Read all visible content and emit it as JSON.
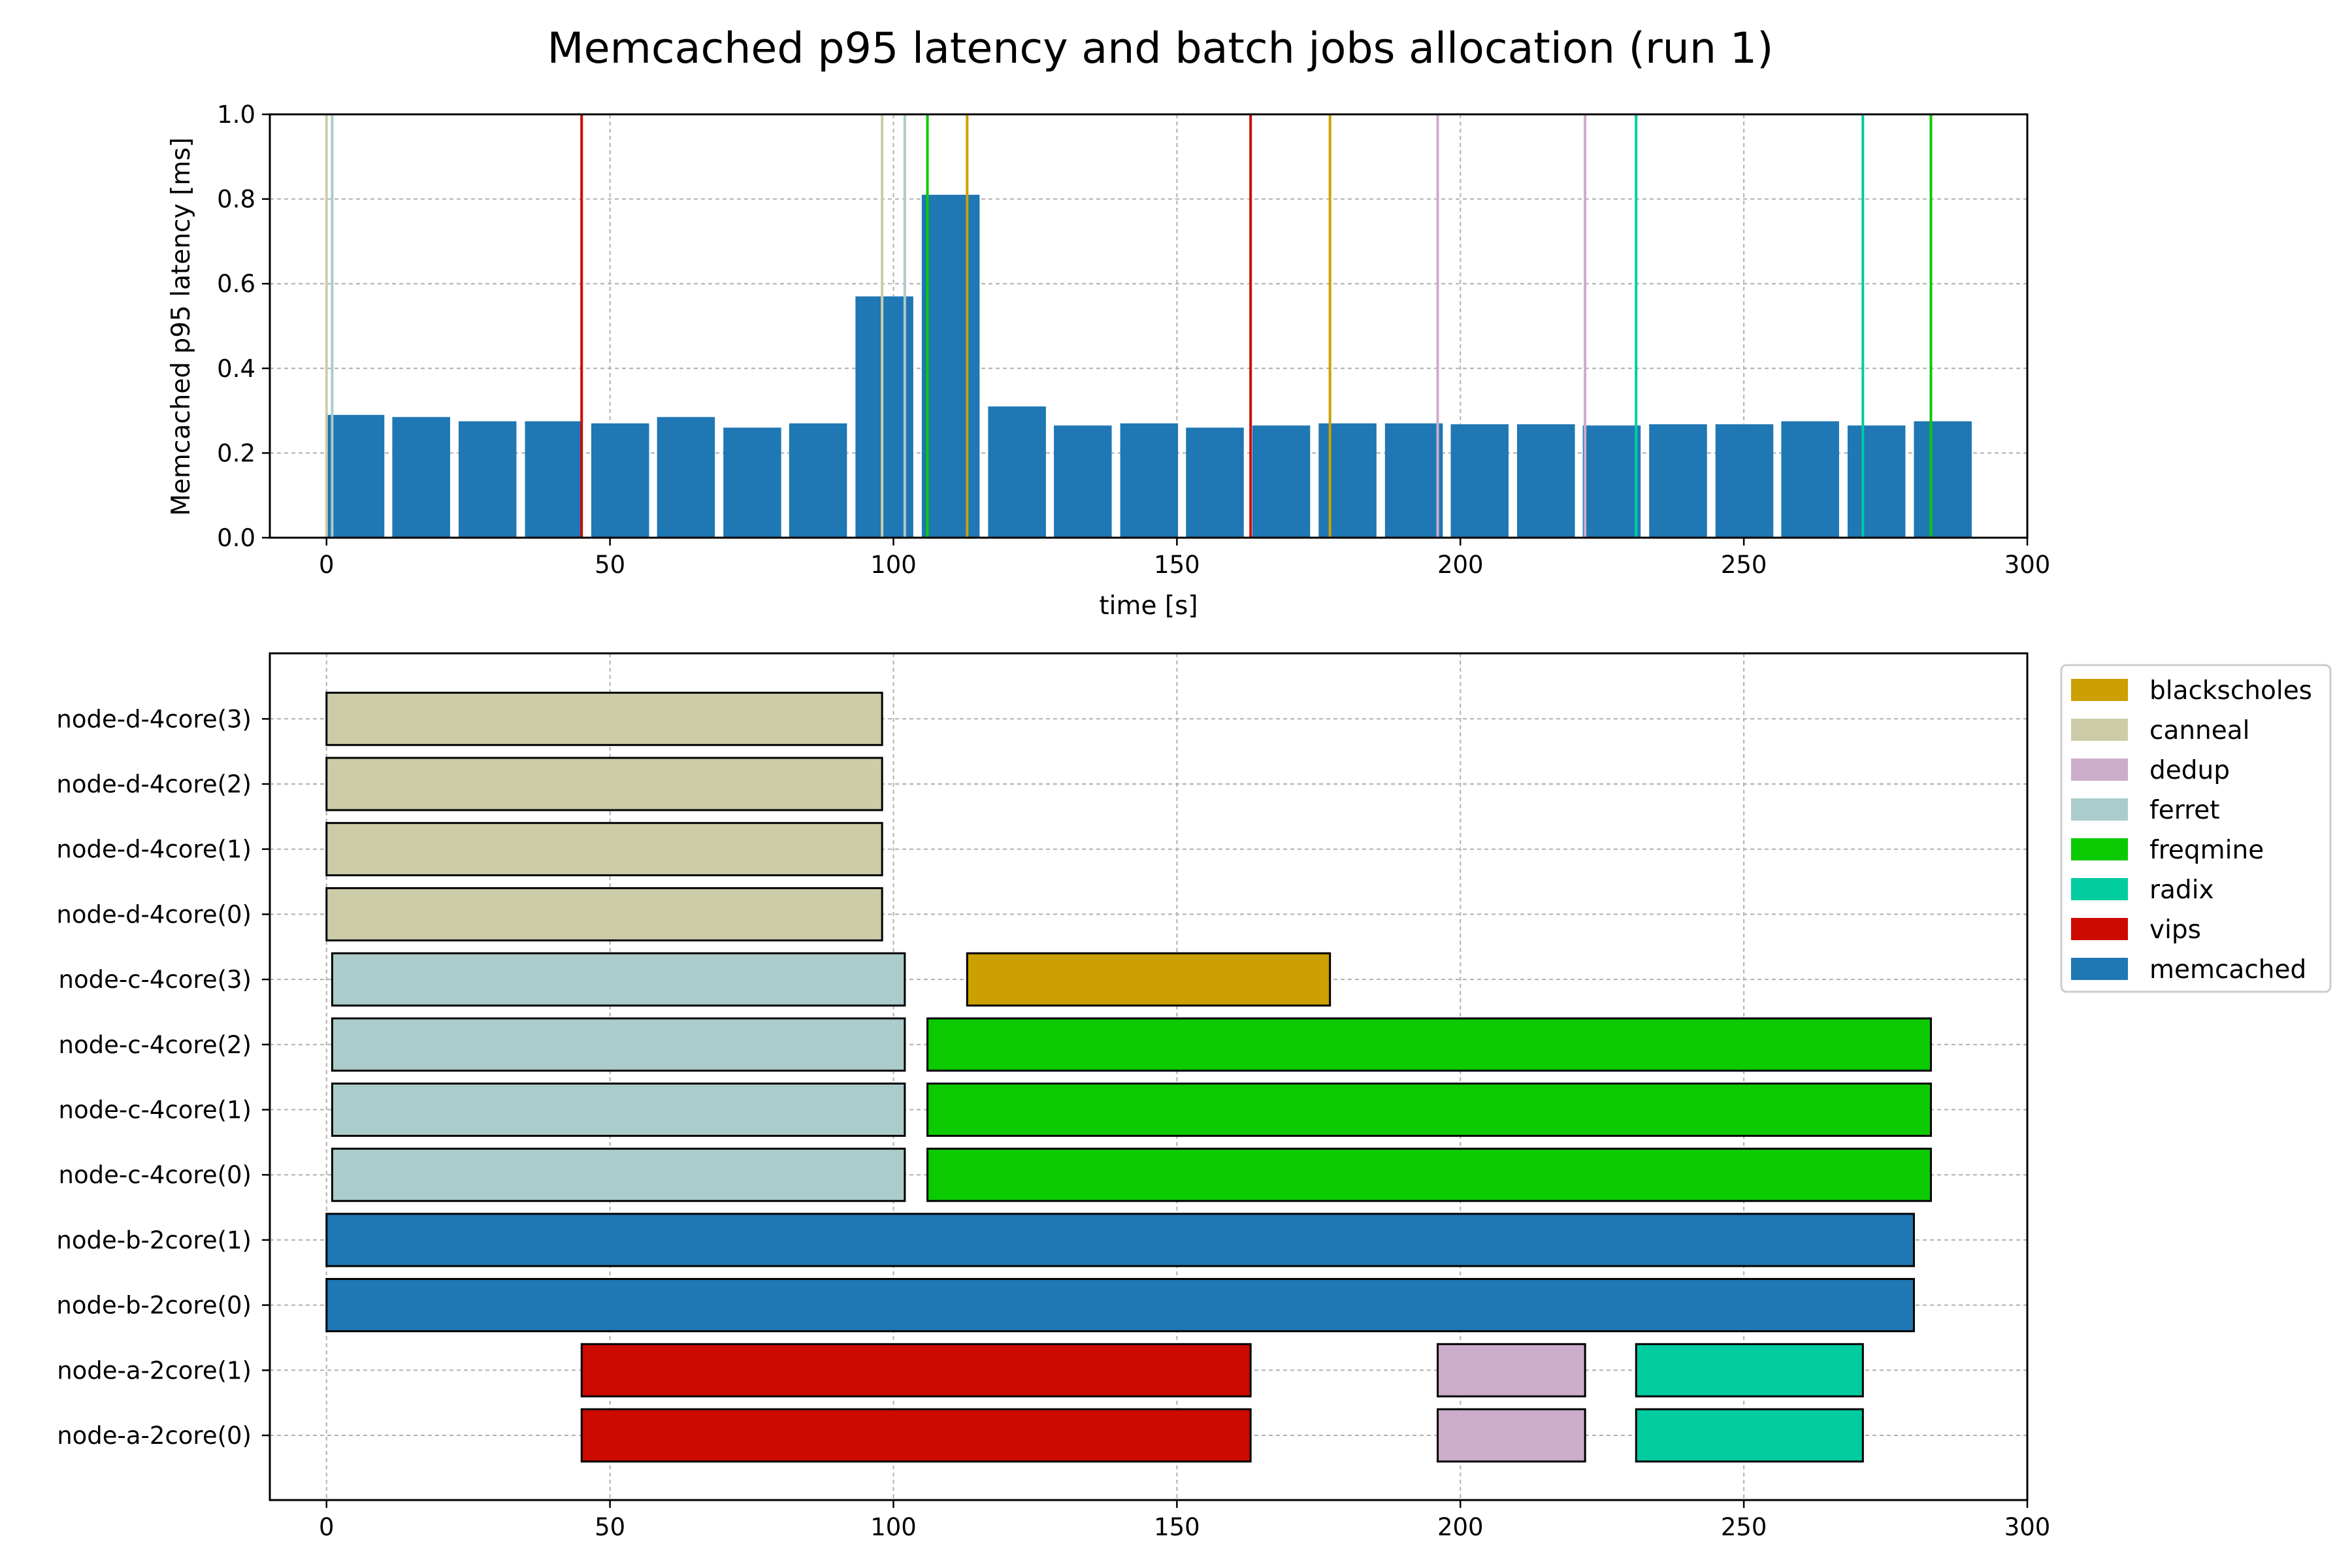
{
  "figure": {
    "title": "Memcached p95 latency and batch jobs allocation (run 1)"
  },
  "chart_data": [
    {
      "type": "bar",
      "title": "",
      "xlabel": "time [s]",
      "ylabel": "Memcached p95 latency [ms]",
      "xlim": [
        -10,
        300
      ],
      "ylim": [
        0,
        1.0
      ],
      "xticks": [
        "0",
        "50",
        "100",
        "150",
        "200",
        "250",
        "300"
      ],
      "yticks": [
        "0.0",
        "0.2",
        "0.4",
        "0.6",
        "0.8",
        "1.0"
      ],
      "grid": true,
      "bar_color": "#1f77b4",
      "bar_width": 10.2,
      "x": [
        0,
        11.6,
        23.3,
        35,
        46.7,
        58.3,
        70,
        81.6,
        93.3,
        105,
        116.7,
        128.3,
        140,
        151.6,
        163.3,
        175,
        186.7,
        198.3,
        210,
        221.6,
        233.3,
        245,
        256.6,
        268.3,
        280
      ],
      "values": [
        0.29,
        0.285,
        0.275,
        0.275,
        0.27,
        0.285,
        0.26,
        0.27,
        0.57,
        0.81,
        0.31,
        0.265,
        0.27,
        0.26,
        0.265,
        0.27,
        0.27,
        0.268,
        0.268,
        0.265,
        0.268,
        0.268,
        0.275,
        0.265,
        0.275
      ],
      "event_lines": [
        {
          "job": "canneal",
          "x": 0,
          "color": "#cccca8"
        },
        {
          "job": "ferret",
          "x": 1,
          "color": "#aacccb"
        },
        {
          "job": "vips",
          "x": 45,
          "color": "#cc0a00"
        },
        {
          "job": "canneal",
          "x": 98,
          "color": "#cccca8"
        },
        {
          "job": "ferret",
          "x": 102,
          "color": "#aacccb"
        },
        {
          "job": "freqmine",
          "x": 106,
          "color": "#0cca00"
        },
        {
          "job": "blackscholes",
          "x": 113,
          "color": "#cca000"
        },
        {
          "job": "vips",
          "x": 163,
          "color": "#cc0a00"
        },
        {
          "job": "blackscholes",
          "x": 177,
          "color": "#cca000"
        },
        {
          "job": "dedup",
          "x": 196,
          "color": "#ccacca"
        },
        {
          "job": "dedup",
          "x": 222,
          "color": "#ccacca"
        },
        {
          "job": "radix",
          "x": 231,
          "color": "#00cca0"
        },
        {
          "job": "radix",
          "x": 271,
          "color": "#00cca0"
        },
        {
          "job": "freqmine",
          "x": 283,
          "color": "#0cca00"
        }
      ]
    },
    {
      "type": "gantt",
      "title": "",
      "xlabel": "",
      "ylabel": "",
      "xlim": [
        -10,
        300
      ],
      "xticks": [
        "0",
        "50",
        "100",
        "150",
        "200",
        "250",
        "300"
      ],
      "grid": true,
      "categories": [
        "node-a-2core(0)",
        "node-a-2core(1)",
        "node-b-2core(0)",
        "node-b-2core(1)",
        "node-c-4core(0)",
        "node-c-4core(1)",
        "node-c-4core(2)",
        "node-c-4core(3)",
        "node-d-4core(0)",
        "node-d-4core(1)",
        "node-d-4core(2)",
        "node-d-4core(3)"
      ],
      "tasks": [
        {
          "row": 0,
          "job": "vips",
          "start": 45,
          "end": 163
        },
        {
          "row": 0,
          "job": "dedup",
          "start": 196,
          "end": 222
        },
        {
          "row": 0,
          "job": "radix",
          "start": 231,
          "end": 271
        },
        {
          "row": 1,
          "job": "vips",
          "start": 45,
          "end": 163
        },
        {
          "row": 1,
          "job": "dedup",
          "start": 196,
          "end": 222
        },
        {
          "row": 1,
          "job": "radix",
          "start": 231,
          "end": 271
        },
        {
          "row": 2,
          "job": "memcached",
          "start": 0,
          "end": 280
        },
        {
          "row": 3,
          "job": "memcached",
          "start": 0,
          "end": 280
        },
        {
          "row": 4,
          "job": "ferret",
          "start": 1,
          "end": 102
        },
        {
          "row": 4,
          "job": "freqmine",
          "start": 106,
          "end": 283
        },
        {
          "row": 5,
          "job": "ferret",
          "start": 1,
          "end": 102
        },
        {
          "row": 5,
          "job": "freqmine",
          "start": 106,
          "end": 283
        },
        {
          "row": 6,
          "job": "ferret",
          "start": 1,
          "end": 102
        },
        {
          "row": 6,
          "job": "freqmine",
          "start": 106,
          "end": 283
        },
        {
          "row": 7,
          "job": "ferret",
          "start": 1,
          "end": 102
        },
        {
          "row": 7,
          "job": "blackscholes",
          "start": 113,
          "end": 177
        },
        {
          "row": 8,
          "job": "canneal",
          "start": 0,
          "end": 98
        },
        {
          "row": 9,
          "job": "canneal",
          "start": 0,
          "end": 98
        },
        {
          "row": 10,
          "job": "canneal",
          "start": 0,
          "end": 98
        },
        {
          "row": 11,
          "job": "canneal",
          "start": 0,
          "end": 98
        }
      ],
      "legend": {
        "placement": "upper-right-outside",
        "entries": [
          {
            "label": "blackscholes",
            "color": "#cca000"
          },
          {
            "label": "canneal",
            "color": "#cccca8"
          },
          {
            "label": "dedup",
            "color": "#ccacca"
          },
          {
            "label": "ferret",
            "color": "#aacccb"
          },
          {
            "label": "freqmine",
            "color": "#0cca00"
          },
          {
            "label": "radix",
            "color": "#00cca0"
          },
          {
            "label": "vips",
            "color": "#cc0a00"
          },
          {
            "label": "memcached",
            "color": "#1f77b4"
          }
        ]
      }
    }
  ]
}
